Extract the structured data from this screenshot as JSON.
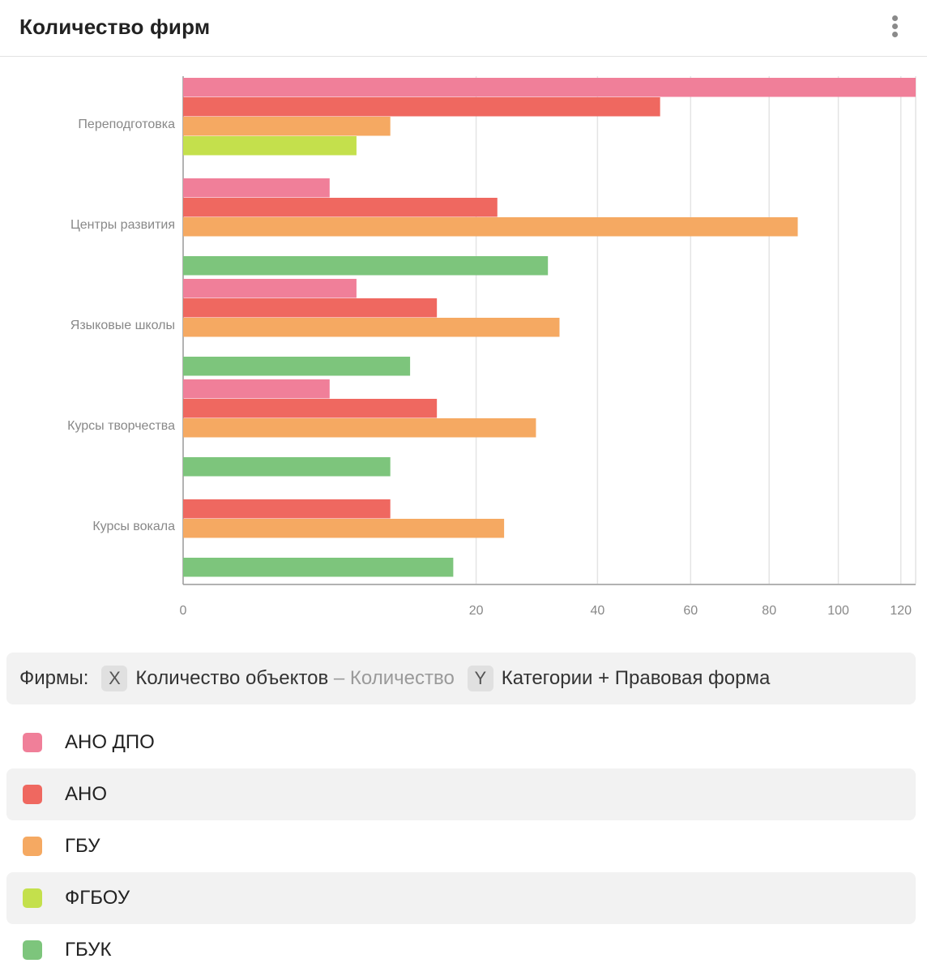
{
  "header": {
    "title": "Количество фирм",
    "menu_icon": "more-vertical-icon"
  },
  "chart_data": {
    "type": "bar",
    "orientation": "horizontal",
    "title": "Количество фирм",
    "categories": [
      "Переподготовка",
      "Центры развития",
      "Языковые школы",
      "Курсы творчества",
      "Курсы вокала"
    ],
    "series": [
      {
        "name": "АНО ДПО",
        "color": "#f07f99",
        "values": [
          125,
          5,
          7,
          5,
          null
        ]
      },
      {
        "name": "АНО",
        "color": "#ef6860",
        "values": [
          53,
          23,
          15,
          15,
          10
        ]
      },
      {
        "name": "ГБУ",
        "color": "#f5a962",
        "values": [
          10,
          88,
          33,
          29,
          24
        ]
      },
      {
        "name": "ФГБОУ",
        "color": "#c4e04c",
        "values": [
          7,
          null,
          null,
          null,
          null
        ]
      },
      {
        "name": "ГБУК",
        "color": "#7dc57c",
        "values": [
          null,
          31,
          12,
          10,
          17
        ]
      }
    ],
    "x_ticks": [
      "0",
      "20",
      "40",
      "60",
      "80",
      "100",
      "120"
    ],
    "x_tick_values": [
      0,
      20,
      40,
      60,
      80,
      100,
      120
    ],
    "xlim": [
      0,
      125
    ],
    "xscale": "sqrt",
    "grid": true
  },
  "summary": {
    "prefix": "Фирмы:",
    "x_chip": "X",
    "x_label": "Количество объектов",
    "x_agg": "– Количество",
    "y_chip": "Y",
    "y_label": "Категории + Правовая форма"
  },
  "legend": [
    {
      "label": "АНО ДПО",
      "color": "#f07f99"
    },
    {
      "label": "АНО",
      "color": "#ef6860"
    },
    {
      "label": "ГБУ",
      "color": "#f5a962"
    },
    {
      "label": "ФГБОУ",
      "color": "#c4e04c"
    },
    {
      "label": "ГБУК",
      "color": "#7dc57c"
    }
  ]
}
